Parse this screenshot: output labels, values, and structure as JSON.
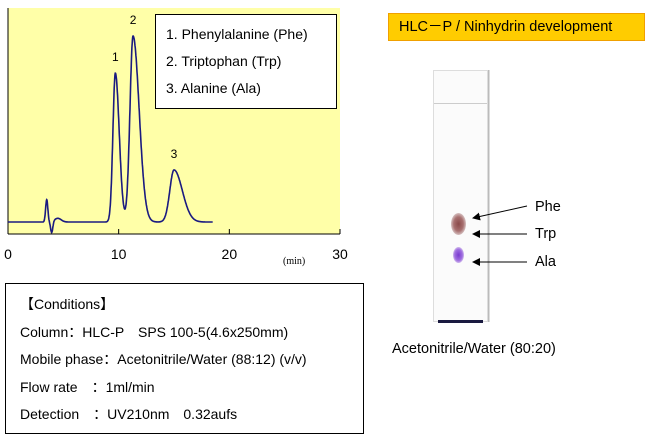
{
  "chart_data": {
    "type": "line",
    "xlabel": "(min)",
    "ylabel": "",
    "xlim": [
      0,
      30
    ],
    "xticks": [
      "0",
      "10",
      "20",
      "30"
    ],
    "grid": false,
    "background": "#ffffa8",
    "line_color": "#1a1a80",
    "legend": [
      "1. Phenylalanine (Phe)",
      "2. Triptophan (Trp)",
      "3. Alanine (Ala)"
    ],
    "legend_placement": "top-right",
    "run_end_min": 18.5,
    "peaks": [
      {
        "label": "1",
        "rt_min": 9.7,
        "relative_height": 80
      },
      {
        "label": "2",
        "rt_min": 11.3,
        "relative_height": 100
      },
      {
        "label": "3",
        "rt_min": 15.0,
        "relative_height": 28
      }
    ],
    "solvent_disturbance_min": 3.5
  },
  "conditions": {
    "title": "【Conditions】",
    "lines": [
      "Column：HLC-P　SPS 100-5(4.6x250mm)",
      "Mobile phase：Acetonitrile/Water (88:12) (v/v)",
      "Flow rate　：1ml/min",
      "Detection　：UV210nm　0.32aufs"
    ]
  },
  "tlc": {
    "header": "HLC－P / Ninhydrin development",
    "header_color": "#ffcc00",
    "spots": [
      {
        "label": "Phe",
        "color": "#8a4a4a"
      },
      {
        "label": "Trp",
        "color": "#8a4a4a"
      },
      {
        "label": "Ala",
        "color": "#8a55c8"
      }
    ],
    "caption": "Acetonitrile/Water (80:20)"
  }
}
